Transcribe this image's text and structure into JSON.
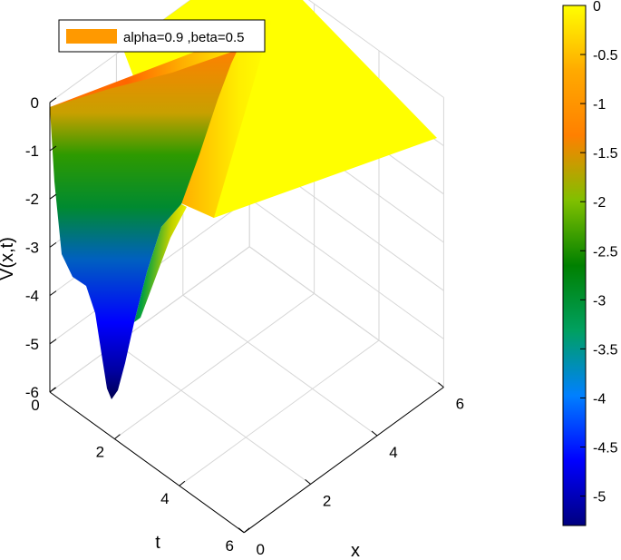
{
  "chart_data": {
    "type": "surface3d",
    "title": "",
    "xlabel": "x",
    "ylabel": "t",
    "zlabel": "V(x,t)",
    "xlim": [
      0,
      6
    ],
    "tlim": [
      0,
      6
    ],
    "zlim": [
      -6,
      0
    ],
    "x_ticks": [
      "0",
      "2",
      "4",
      "6"
    ],
    "t_ticks": [
      "0",
      "2",
      "4",
      "6"
    ],
    "z_ticks": [
      "0",
      "-1",
      "-2",
      "-3",
      "-4",
      "-5",
      "-6"
    ],
    "grid": true,
    "legend": {
      "placement": "top-left",
      "entries": [
        {
          "label": "alpha=0.9 ,beta=0.5",
          "color": "#ff9900"
        }
      ]
    },
    "colorbar": {
      "placement": "right",
      "ticks": [
        "0",
        "-0.5",
        "-1",
        "-1.5",
        "-2",
        "-2.5",
        "-3",
        "-3.5",
        "-4",
        "-4.5",
        "-5"
      ],
      "range": [
        -5.3,
        0
      ],
      "colormap": "jet",
      "colors": [
        "#00007f",
        "#0000ff",
        "#0080ff",
        "#00a060",
        "#008000",
        "#80c000",
        "#ff8000",
        "#ffaa00",
        "#ffff00"
      ]
    },
    "parameters": {
      "alpha": 0.9,
      "beta": 0.5
    },
    "surface": {
      "description_values": "V(x,t) is ~0 for x >= 2.5 (flat yellow plane); a deep trough near x = 1, t = 1 reaching about -6; about -4 along t = 6 edge at x = 0",
      "min_value": -6.0,
      "max_value": 0.0,
      "trough_location": {
        "x": 1.0,
        "t": 1.0
      }
    }
  }
}
